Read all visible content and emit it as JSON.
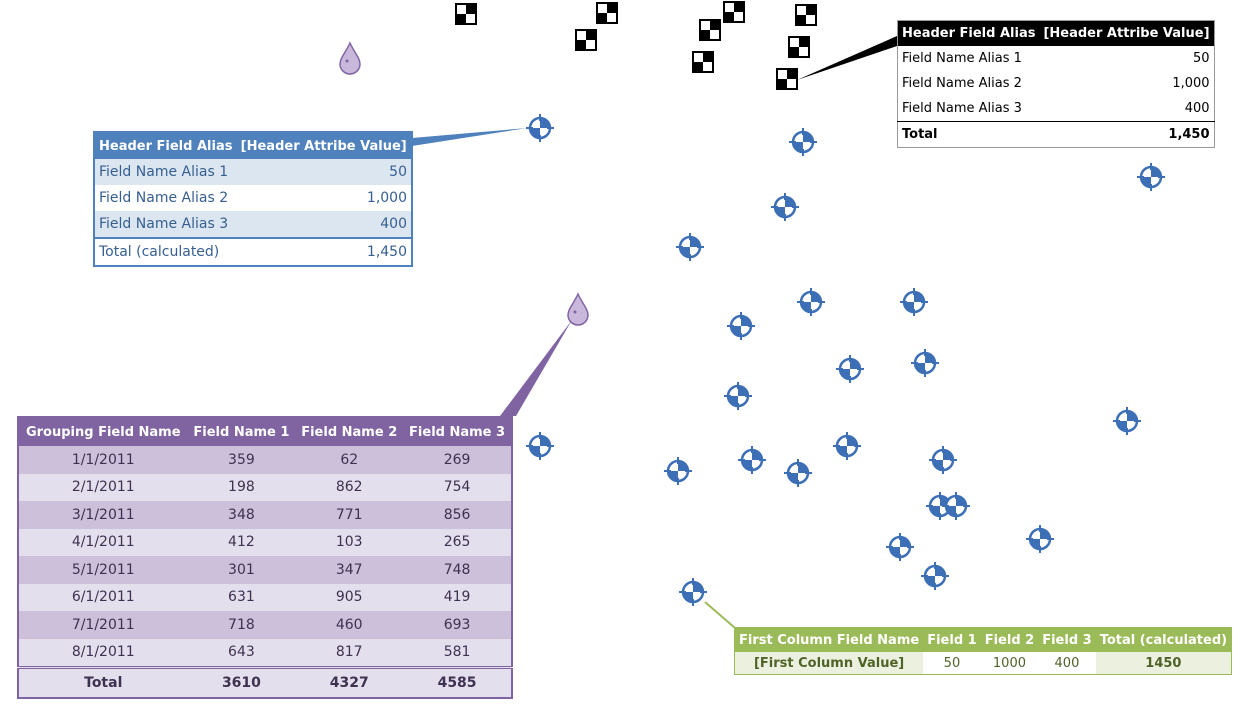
{
  "black_callout": {
    "header": [
      "Header Field Alias",
      "[Header Attribe Value]"
    ],
    "rows": [
      [
        "Field Name Alias 1",
        "50"
      ],
      [
        "Field Name Alias 2",
        "1,000"
      ],
      [
        "Field Name Alias 3",
        "400"
      ]
    ],
    "total": [
      "Total",
      "1,450"
    ]
  },
  "blue_callout": {
    "header": [
      "Header Field Alias",
      "[Header Attribe Value]"
    ],
    "rows": [
      [
        "Field Name Alias 1",
        "50"
      ],
      [
        "Field Name Alias 2",
        "1,000"
      ],
      [
        "Field Name Alias 3",
        "400"
      ]
    ],
    "total": [
      "Total (calculated)",
      "1,450"
    ]
  },
  "purple_table": {
    "header": [
      "Grouping Field Name",
      "Field Name 1",
      "Field Name 2",
      "Field Name 3"
    ],
    "rows": [
      [
        "1/1/2011",
        "359",
        "62",
        "269"
      ],
      [
        "2/1/2011",
        "198",
        "862",
        "754"
      ],
      [
        "3/1/2011",
        "348",
        "771",
        "856"
      ],
      [
        "4/1/2011",
        "412",
        "103",
        "265"
      ],
      [
        "5/1/2011",
        "301",
        "347",
        "748"
      ],
      [
        "6/1/2011",
        "631",
        "905",
        "419"
      ],
      [
        "7/1/2011",
        "718",
        "460",
        "693"
      ],
      [
        "8/1/2011",
        "643",
        "817",
        "581"
      ]
    ],
    "total": [
      "Total",
      "3610",
      "4327",
      "4585"
    ]
  },
  "green_table": {
    "header": [
      "First Column Field Name",
      "Field 1",
      "Field 2",
      "Field 3",
      "Total (calculated)"
    ],
    "rows": [
      [
        "[First Column Value]",
        "50",
        "1000",
        "400",
        "1450"
      ]
    ]
  }
}
